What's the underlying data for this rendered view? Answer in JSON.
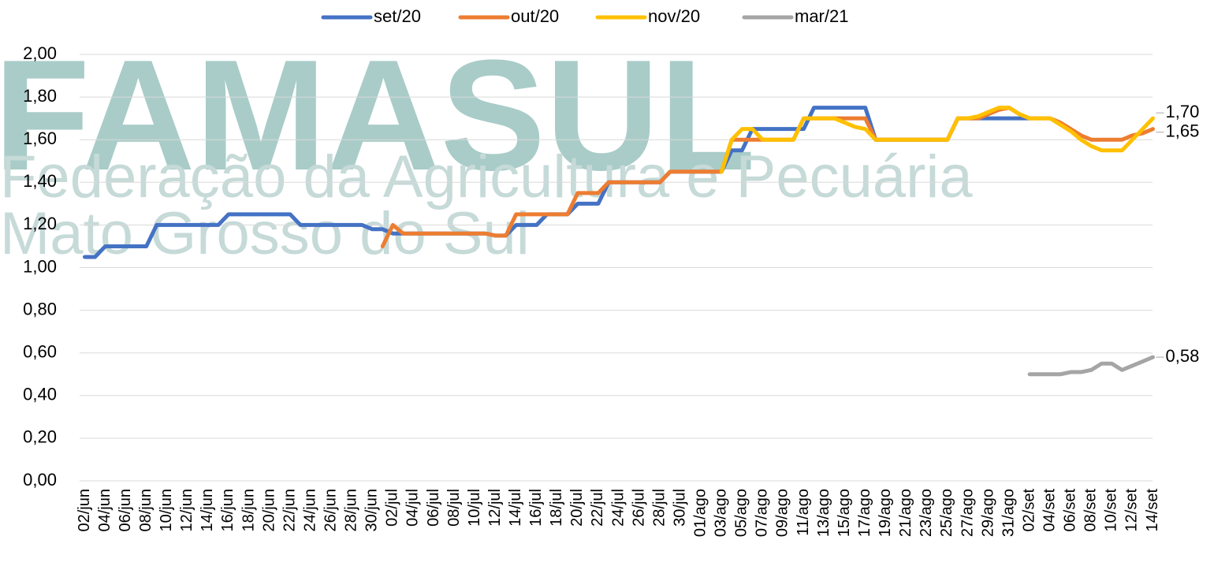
{
  "watermark": {
    "title": "FAMASUL",
    "line1": "Federação da Agricultura e Pecuária",
    "line2": "Mato Grosso do Sul"
  },
  "chart_data": {
    "type": "line",
    "categories": [
      "02/jun",
      null,
      "04/jun",
      null,
      "06/jun",
      null,
      "08/jun",
      null,
      "10/jun",
      null,
      "12/jun",
      null,
      "14/jun",
      null,
      "16/jun",
      null,
      "18/jun",
      null,
      "20/jun",
      null,
      "22/jun",
      null,
      "24/jun",
      null,
      "26/jun",
      null,
      "28/jun",
      null,
      "30/jun",
      null,
      "02/jul",
      null,
      "04/jul",
      null,
      "06/jul",
      null,
      "08/jul",
      null,
      "10/jul",
      null,
      "12/jul",
      null,
      "14/jul",
      null,
      "16/jul",
      null,
      "18/jul",
      null,
      "20/jul",
      null,
      "22/jul",
      null,
      "24/jul",
      null,
      "26/jul",
      null,
      "28/jul",
      null,
      "30/jul",
      null,
      "01/ago",
      null,
      "03/ago",
      null,
      "05/ago",
      null,
      "07/ago",
      null,
      "09/ago",
      null,
      "11/ago",
      null,
      "13/ago",
      null,
      "15/ago",
      null,
      "17/ago",
      null,
      "19/ago",
      null,
      "21/ago",
      null,
      "23/ago",
      null,
      "25/ago",
      null,
      "27/ago",
      null,
      "29/ago",
      null,
      "31/ago",
      null,
      "02/set",
      null,
      "04/set",
      null,
      "06/set",
      null,
      "08/set",
      null,
      "10/set",
      null,
      "12/set",
      null,
      "14/set"
    ],
    "series": [
      {
        "name": "set/20",
        "color": "#4472c4",
        "values": [
          1.05,
          1.05,
          1.1,
          1.1,
          1.1,
          1.1,
          1.1,
          1.2,
          1.2,
          1.2,
          1.2,
          1.2,
          1.2,
          1.2,
          1.25,
          1.25,
          1.25,
          1.25,
          1.25,
          1.25,
          1.25,
          1.2,
          1.2,
          1.2,
          1.2,
          1.2,
          1.2,
          1.2,
          1.18,
          1.18,
          1.16,
          1.16,
          1.16,
          1.16,
          1.16,
          1.16,
          1.16,
          1.16,
          1.16,
          1.16,
          1.15,
          1.15,
          1.2,
          1.2,
          1.2,
          1.25,
          1.25,
          1.25,
          1.3,
          1.3,
          1.3,
          1.4,
          1.4,
          1.4,
          1.4,
          1.4,
          1.4,
          1.45,
          1.45,
          1.45,
          1.45,
          1.45,
          1.45,
          1.55,
          1.55,
          1.65,
          1.65,
          1.65,
          1.65,
          1.65,
          1.65,
          1.75,
          1.75,
          1.75,
          1.75,
          1.75,
          1.75,
          1.6,
          1.6,
          1.6,
          1.6,
          1.6,
          1.6,
          1.6,
          1.6,
          1.7,
          1.7,
          1.7,
          1.7,
          1.7,
          1.7,
          1.7,
          1.7,
          null,
          null,
          null,
          null,
          null,
          null,
          null,
          null,
          null,
          null,
          null,
          null
        ]
      },
      {
        "name": "out/20",
        "color": "#ed7d31",
        "values": [
          null,
          null,
          null,
          null,
          null,
          null,
          null,
          null,
          null,
          null,
          null,
          null,
          null,
          null,
          null,
          null,
          null,
          null,
          null,
          null,
          null,
          null,
          null,
          null,
          null,
          null,
          null,
          null,
          null,
          1.1,
          1.2,
          1.16,
          1.16,
          1.16,
          1.16,
          1.16,
          1.16,
          1.16,
          1.16,
          1.16,
          1.15,
          1.15,
          1.25,
          1.25,
          1.25,
          1.25,
          1.25,
          1.25,
          1.35,
          1.35,
          1.35,
          1.4,
          1.4,
          1.4,
          1.4,
          1.4,
          1.4,
          1.45,
          1.45,
          1.45,
          1.45,
          1.45,
          1.45,
          1.6,
          1.6,
          1.6,
          1.6,
          1.6,
          1.6,
          1.6,
          1.7,
          1.7,
          1.7,
          1.7,
          1.7,
          1.7,
          1.7,
          1.6,
          1.6,
          1.6,
          1.6,
          1.6,
          1.6,
          1.6,
          1.6,
          1.7,
          1.7,
          1.7,
          1.72,
          1.74,
          1.75,
          1.72,
          1.7,
          1.7,
          1.7,
          1.68,
          1.65,
          1.62,
          1.6,
          1.6,
          1.6,
          1.6,
          1.62,
          1.63,
          1.65
        ],
        "value_labels": [
          null,
          null,
          null,
          null,
          null,
          null,
          null,
          null,
          null,
          null,
          null,
          null,
          null,
          null,
          null,
          null,
          null,
          null,
          null,
          null,
          null,
          null,
          null,
          null,
          null,
          null,
          null,
          null,
          null,
          null,
          null,
          null,
          null,
          null,
          null,
          null,
          null,
          null,
          null,
          null,
          null,
          null,
          null,
          null,
          null,
          null,
          null,
          null,
          null,
          null,
          null,
          null,
          null,
          null,
          null,
          null,
          null,
          null,
          null,
          null,
          null,
          null,
          null,
          null,
          null,
          null,
          null,
          null,
          null,
          null,
          null,
          null,
          null,
          null,
          null,
          null,
          null,
          null,
          null,
          null,
          null,
          null,
          null,
          null,
          null,
          null,
          null,
          null,
          null,
          null,
          null,
          null,
          null,
          null,
          null,
          null,
          null,
          null,
          null,
          null,
          null,
          null,
          null,
          null,
          "1,65"
        ]
      },
      {
        "name": "nov/20",
        "color": "#ffc000",
        "values": [
          null,
          null,
          null,
          null,
          null,
          null,
          null,
          null,
          null,
          null,
          null,
          null,
          null,
          null,
          null,
          null,
          null,
          null,
          null,
          null,
          null,
          null,
          null,
          null,
          null,
          null,
          null,
          null,
          null,
          null,
          null,
          null,
          null,
          null,
          null,
          null,
          null,
          null,
          null,
          null,
          null,
          null,
          null,
          null,
          null,
          null,
          null,
          null,
          null,
          null,
          null,
          null,
          null,
          null,
          null,
          null,
          null,
          null,
          null,
          null,
          null,
          null,
          1.45,
          1.6,
          1.65,
          1.65,
          1.6,
          1.6,
          1.6,
          1.6,
          1.7,
          1.7,
          1.7,
          1.7,
          1.68,
          1.66,
          1.65,
          1.6,
          1.6,
          1.6,
          1.6,
          1.6,
          1.6,
          1.6,
          1.6,
          1.7,
          1.7,
          1.71,
          1.73,
          1.75,
          1.75,
          1.72,
          1.7,
          1.7,
          1.7,
          1.67,
          1.64,
          1.6,
          1.57,
          1.55,
          1.55,
          1.55,
          1.6,
          1.65,
          1.7
        ],
        "value_labels": [
          null,
          null,
          null,
          null,
          null,
          null,
          null,
          null,
          null,
          null,
          null,
          null,
          null,
          null,
          null,
          null,
          null,
          null,
          null,
          null,
          null,
          null,
          null,
          null,
          null,
          null,
          null,
          null,
          null,
          null,
          null,
          null,
          null,
          null,
          null,
          null,
          null,
          null,
          null,
          null,
          null,
          null,
          null,
          null,
          null,
          null,
          null,
          null,
          null,
          null,
          null,
          null,
          null,
          null,
          null,
          null,
          null,
          null,
          null,
          null,
          null,
          null,
          null,
          null,
          null,
          null,
          null,
          null,
          null,
          null,
          null,
          null,
          null,
          null,
          null,
          null,
          null,
          null,
          null,
          null,
          null,
          null,
          null,
          null,
          null,
          null,
          null,
          null,
          null,
          null,
          null,
          null,
          null,
          null,
          null,
          null,
          null,
          null,
          null,
          null,
          null,
          null,
          null,
          null,
          "1,70"
        ]
      },
      {
        "name": "mar/21",
        "color": "#a5a5a5",
        "values": [
          null,
          null,
          null,
          null,
          null,
          null,
          null,
          null,
          null,
          null,
          null,
          null,
          null,
          null,
          null,
          null,
          null,
          null,
          null,
          null,
          null,
          null,
          null,
          null,
          null,
          null,
          null,
          null,
          null,
          null,
          null,
          null,
          null,
          null,
          null,
          null,
          null,
          null,
          null,
          null,
          null,
          null,
          null,
          null,
          null,
          null,
          null,
          null,
          null,
          null,
          null,
          null,
          null,
          null,
          null,
          null,
          null,
          null,
          null,
          null,
          null,
          null,
          null,
          null,
          null,
          null,
          null,
          null,
          null,
          null,
          null,
          null,
          null,
          null,
          null,
          null,
          null,
          null,
          null,
          null,
          null,
          null,
          null,
          null,
          null,
          null,
          null,
          null,
          null,
          null,
          null,
          null,
          0.5,
          0.5,
          0.5,
          0.5,
          0.51,
          0.51,
          0.52,
          0.55,
          0.55,
          0.52,
          0.54,
          0.56,
          0.58
        ],
        "value_labels": [
          null,
          null,
          null,
          null,
          null,
          null,
          null,
          null,
          null,
          null,
          null,
          null,
          null,
          null,
          null,
          null,
          null,
          null,
          null,
          null,
          null,
          null,
          null,
          null,
          null,
          null,
          null,
          null,
          null,
          null,
          null,
          null,
          null,
          null,
          null,
          null,
          null,
          null,
          null,
          null,
          null,
          null,
          null,
          null,
          null,
          null,
          null,
          null,
          null,
          null,
          null,
          null,
          null,
          null,
          null,
          null,
          null,
          null,
          null,
          null,
          null,
          null,
          null,
          null,
          null,
          null,
          null,
          null,
          null,
          null,
          null,
          null,
          null,
          null,
          null,
          null,
          null,
          null,
          null,
          null,
          null,
          null,
          null,
          null,
          null,
          null,
          null,
          null,
          null,
          null,
          null,
          null,
          null,
          null,
          null,
          null,
          null,
          null,
          null,
          null,
          null,
          null,
          null,
          null,
          "0,58"
        ]
      }
    ],
    "ylim": [
      0,
      2
    ],
    "yticks": [
      {
        "value": 0,
        "label": "0,00"
      },
      {
        "value": 0.2,
        "label": "0,20"
      },
      {
        "value": 0.4,
        "label": "0,40"
      },
      {
        "value": 0.6,
        "label": "0,60"
      },
      {
        "value": 0.8,
        "label": "0,80"
      },
      {
        "value": 1,
        "label": "1,00"
      },
      {
        "value": 1.2,
        "label": "1,20"
      },
      {
        "value": 1.4,
        "label": "1,40"
      },
      {
        "value": 1.6,
        "label": "1,60"
      },
      {
        "value": 1.8,
        "label": "1,80"
      },
      {
        "value": 2,
        "label": "2,00"
      }
    ],
    "grid": true,
    "legend": "top"
  }
}
